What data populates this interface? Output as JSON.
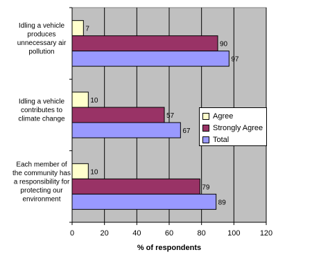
{
  "chart_data": {
    "type": "bar",
    "orientation": "horizontal",
    "categories": [
      "Idling a vehicle produces unnecessary air pollution",
      "Idling a vehicle contributes to climate change",
      "Each member of the community has a responsibility for protecting our environment"
    ],
    "category_lines": [
      [
        "Idling a vehicle",
        "produces",
        "unnecessary air",
        "pollution"
      ],
      [
        "Idling a vehicle",
        "contributes to",
        "climate change"
      ],
      [
        "Each member of",
        "the community has",
        "a responsibility for",
        "protecting our",
        "environment"
      ]
    ],
    "series": [
      {
        "name": "Agree",
        "values": [
          7,
          10,
          10
        ],
        "color": "#ffffcc"
      },
      {
        "name": "Strongly Agree",
        "values": [
          90,
          57,
          79
        ],
        "color": "#993366"
      },
      {
        "name": "Total",
        "values": [
          97,
          67,
          89
        ],
        "color": "#9999ff"
      }
    ],
    "xlabel": "% of respondents",
    "xlim": [
      0,
      120
    ],
    "xticks": [
      0,
      20,
      40,
      60,
      80,
      100,
      120
    ],
    "grid": true,
    "plot_background": "#c0c0c0",
    "legend_position": "right"
  }
}
